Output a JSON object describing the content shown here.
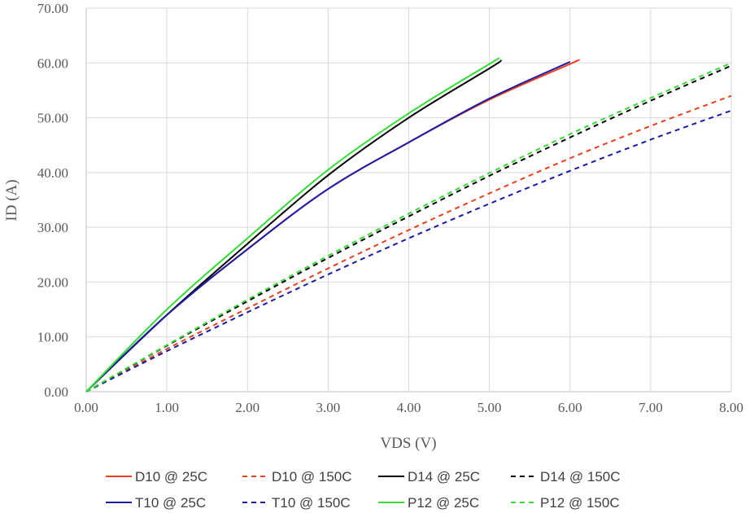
{
  "chart_data": {
    "type": "line",
    "title": "",
    "xlabel": "VDS (V)",
    "ylabel": "ID (A)",
    "xlim": [
      0,
      8
    ],
    "ylim": [
      0,
      70
    ],
    "grid": true,
    "legend_position": "bottom",
    "x_ticks": [
      "0.00",
      "1.00",
      "2.00",
      "3.00",
      "4.00",
      "5.00",
      "6.00",
      "7.00",
      "8.00"
    ],
    "y_ticks": [
      "0.00",
      "10.00",
      "20.00",
      "30.00",
      "40.00",
      "50.00",
      "60.00",
      "70.00"
    ],
    "series": [
      {
        "name": "D10 @ 25C",
        "color": "#E8401C",
        "dash": false,
        "x": [
          0,
          1,
          2,
          3,
          4,
          5,
          6,
          6.1
        ],
        "y": [
          0,
          14,
          26,
          37,
          45.5,
          53.3,
          59.8,
          60.5
        ]
      },
      {
        "name": "D10 @ 150C",
        "color": "#E8401C",
        "dash": true,
        "x": [
          0,
          1,
          2,
          3,
          4,
          5,
          6,
          7,
          8
        ],
        "y": [
          0,
          7.8,
          15.2,
          22.5,
          29.5,
          36.2,
          42.6,
          48.5,
          54
        ]
      },
      {
        "name": "D14 @ 25C",
        "color": "#000000",
        "dash": false,
        "x": [
          0,
          1,
          2,
          3,
          4,
          5,
          5.15
        ],
        "y": [
          0,
          14,
          27,
          39.5,
          50,
          59,
          60.5
        ]
      },
      {
        "name": "D14 @ 150C",
        "color": "#000000",
        "dash": true,
        "x": [
          0,
          1,
          2,
          3,
          4,
          5,
          6,
          7,
          8
        ],
        "y": [
          0,
          8.4,
          16.5,
          24.4,
          32,
          39.4,
          46.4,
          53.1,
          59.5
        ]
      },
      {
        "name": "T10 @ 25C",
        "color": "#1A1AA6",
        "dash": false,
        "x": [
          0,
          1,
          2,
          3,
          4,
          5,
          6
        ],
        "y": [
          0,
          14,
          26,
          37,
          45.5,
          53.5,
          60.2
        ]
      },
      {
        "name": "T10 @ 150C",
        "color": "#1A1AA6",
        "dash": true,
        "x": [
          0,
          1,
          2,
          3,
          4,
          5,
          6,
          7,
          8
        ],
        "y": [
          0,
          7.4,
          14.5,
          21.4,
          28,
          34.3,
          40.3,
          46,
          51.3
        ]
      },
      {
        "name": "P12 @ 25C",
        "color": "#33DD33",
        "dash": false,
        "x": [
          0,
          1,
          2,
          3,
          4,
          5,
          5.12
        ],
        "y": [
          0,
          15,
          28,
          40.5,
          50.8,
          59.8,
          60.8
        ]
      },
      {
        "name": "P12 @ 150C",
        "color": "#33DD33",
        "dash": true,
        "x": [
          0,
          1,
          2,
          3,
          4,
          5,
          6,
          7,
          8
        ],
        "y": [
          0,
          8.5,
          16.8,
          24.8,
          32.5,
          39.9,
          47,
          53.6,
          60
        ]
      }
    ]
  }
}
